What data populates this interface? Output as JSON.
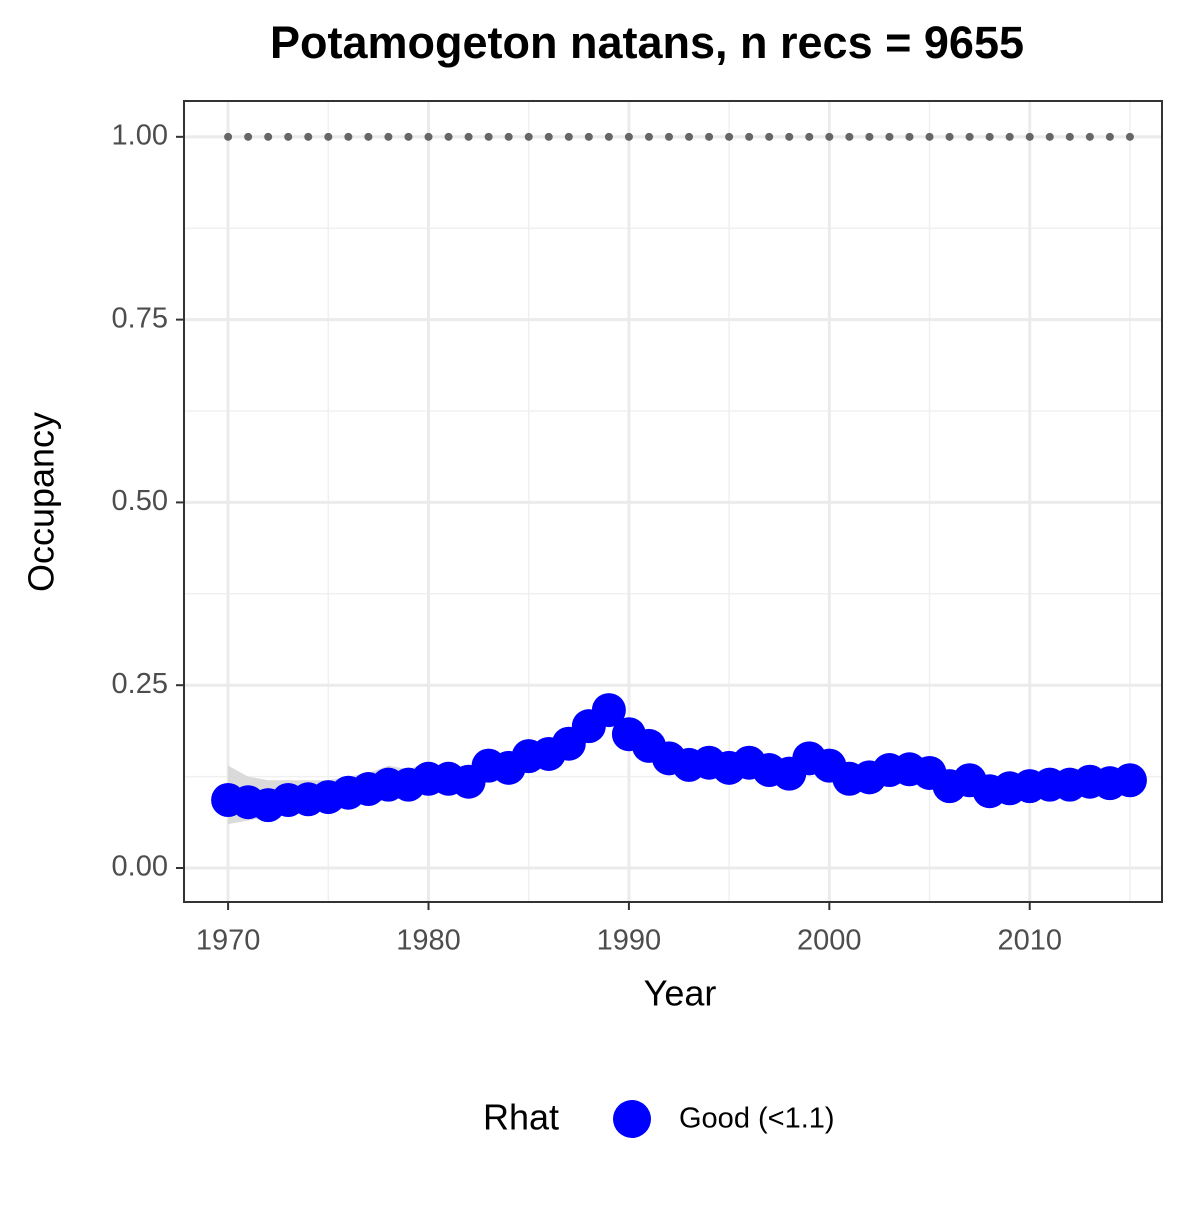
{
  "chart_data": {
    "type": "line",
    "title": "Potamogeton natans, n recs = 9655",
    "x_label": "Year",
    "y_label": "Occupancy",
    "legend_title": "Rhat",
    "legend_position": "bottom",
    "grid": true,
    "x": [
      1970,
      1971,
      1972,
      1973,
      1974,
      1975,
      1976,
      1977,
      1978,
      1979,
      1980,
      1981,
      1982,
      1983,
      1984,
      1985,
      1986,
      1987,
      1988,
      1989,
      1990,
      1991,
      1992,
      1993,
      1994,
      1995,
      1996,
      1997,
      1998,
      1999,
      2000,
      2001,
      2002,
      2003,
      2004,
      2005,
      2006,
      2007,
      2008,
      2009,
      2010,
      2011,
      2012,
      2013,
      2014,
      2015
    ],
    "series": [
      {
        "name": "Good (<1.1)",
        "color": "#0000ff",
        "values": [
          0.093,
          0.09,
          0.086,
          0.093,
          0.094,
          0.097,
          0.103,
          0.108,
          0.114,
          0.114,
          0.122,
          0.122,
          0.118,
          0.14,
          0.137,
          0.153,
          0.156,
          0.17,
          0.194,
          0.216,
          0.183,
          0.167,
          0.15,
          0.141,
          0.144,
          0.137,
          0.144,
          0.134,
          0.129,
          0.15,
          0.14,
          0.122,
          0.124,
          0.134,
          0.135,
          0.13,
          0.112,
          0.12,
          0.105,
          0.109,
          0.112,
          0.114,
          0.114,
          0.118,
          0.116,
          0.12
        ],
        "ci_lower": [
          0.06,
          0.065,
          0.07,
          0.075,
          0.08,
          0.08,
          0.085,
          0.09,
          0.095,
          0.1,
          0.105,
          0.11,
          0.11,
          null,
          null,
          null,
          null,
          null,
          null,
          null,
          null,
          null,
          null,
          null,
          null,
          null,
          null,
          null,
          null,
          null,
          null,
          null,
          null,
          null,
          null,
          null,
          null,
          null,
          null,
          null,
          null,
          null,
          null,
          null,
          null,
          null
        ],
        "ci_upper": [
          0.14,
          0.125,
          0.12,
          0.12,
          0.12,
          0.12,
          0.125,
          0.13,
          0.14,
          0.135,
          0.145,
          0.135,
          0.125,
          null,
          null,
          null,
          null,
          null,
          null,
          null,
          null,
          null,
          null,
          null,
          null,
          null,
          null,
          null,
          null,
          null,
          null,
          null,
          null,
          null,
          null,
          null,
          null,
          null,
          null,
          null,
          null,
          null,
          null,
          null,
          null,
          null
        ],
        "ci_color": "#d3d3d3"
      },
      {
        "color": "#666666",
        "style": "dotted",
        "values": [
          1,
          1,
          1,
          1,
          1,
          1,
          1,
          1,
          1,
          1,
          1,
          1,
          1,
          1,
          1,
          1,
          1,
          1,
          1,
          1,
          1,
          1,
          1,
          1,
          1,
          1,
          1,
          1,
          1,
          1,
          1,
          1,
          1,
          1,
          1,
          1,
          1,
          1,
          1,
          1,
          1,
          1,
          1,
          1,
          1,
          1
        ]
      }
    ],
    "xlim": [
      1967.8,
      2016.6
    ],
    "ylim": [
      -0.0465,
      1.049
    ],
    "xticks": [
      1970,
      1980,
      1990,
      2000,
      2010
    ],
    "minor_xticks": [
      1975,
      1985,
      1995,
      2005,
      2015
    ],
    "yticks": [
      {
        "value": 0,
        "label": "0.00"
      },
      {
        "value": 0.25,
        "label": "0.25"
      },
      {
        "value": 0.5,
        "label": "0.50"
      },
      {
        "value": 0.75,
        "label": "0.75"
      },
      {
        "value": 1,
        "label": "1.00"
      }
    ],
    "minor_yticks": [
      0.125,
      0.375,
      0.625,
      0.875
    ]
  }
}
